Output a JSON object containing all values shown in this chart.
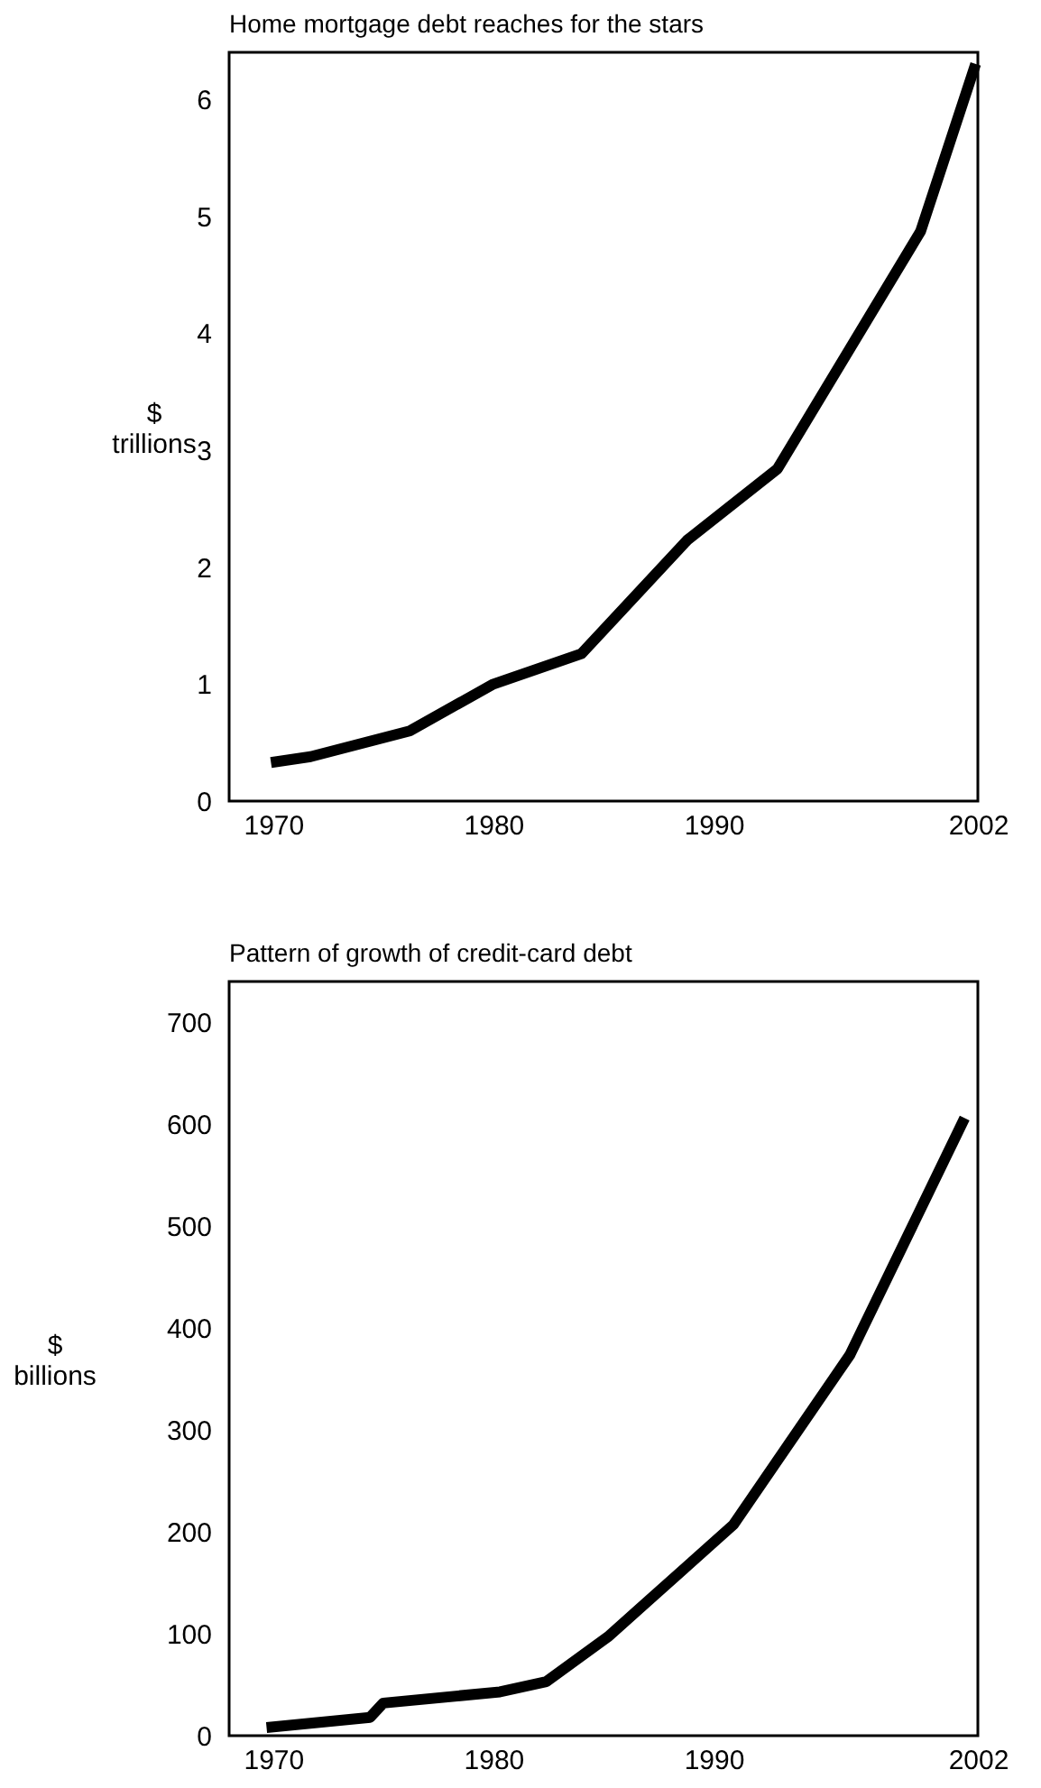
{
  "chart_data": [
    {
      "type": "line",
      "title": "Home mortgage debt reaches for the stars",
      "ylabel": "$\ntrillions",
      "x": [
        1969.9,
        1971.7,
        1976.2,
        1980.0,
        1984.0,
        1988.8,
        1992.9,
        1999.4,
        2001.9
      ],
      "series": [
        {
          "color": "#000000",
          "values": [
            0.33,
            0.38,
            0.6,
            1.0,
            1.26,
            2.23,
            2.84,
            4.87,
            6.3
          ]
        }
      ],
      "xlim": [
        1968,
        2002
      ],
      "xticks": [
        1970,
        1980,
        1990,
        2002
      ],
      "ylim": [
        0,
        6.4
      ],
      "yticks": [
        0,
        1,
        2,
        3,
        4,
        5,
        6
      ],
      "grid": false,
      "marker": "none",
      "line_style": "solid"
    },
    {
      "type": "line",
      "title": "Pattern of growth of credit-card debt",
      "ylabel": "$\nbillions",
      "x": [
        1969.7,
        1974.4,
        1975.0,
        1980.3,
        1982.4,
        1985.2,
        1990.9,
        1996.2,
        2001.4
      ],
      "series": [
        {
          "color": "#000000",
          "values": [
            8,
            18,
            32,
            43,
            53,
            97,
            207,
            374,
            606
          ]
        }
      ],
      "xlim": [
        1968,
        2002
      ],
      "xticks": [
        1970,
        1980,
        1990,
        2002
      ],
      "ylim": [
        0,
        740
      ],
      "yticks": [
        0,
        100,
        200,
        300,
        400,
        500,
        600,
        700
      ],
      "grid": false,
      "marker": "none",
      "line_style": "solid"
    }
  ]
}
